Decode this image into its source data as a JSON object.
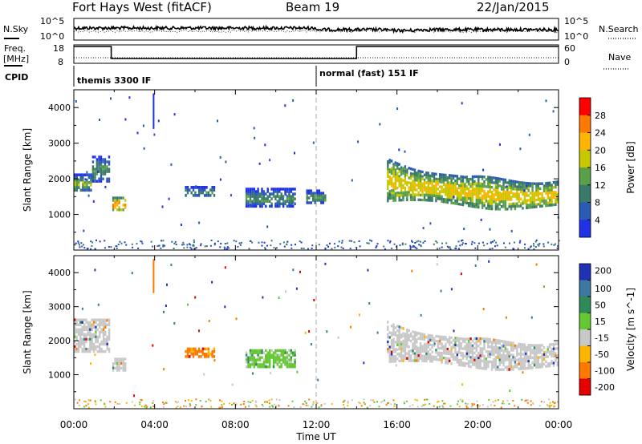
{
  "header": {
    "title": "Fort Hays West (fitACF)",
    "beam": "Beam 19",
    "date": "22/Jan/2015"
  },
  "noise_panel": {
    "left_label": "N.Sky",
    "left_ticks": [
      "10^5",
      "10^0"
    ],
    "right_label": "N.Search",
    "right_ticks": [
      "10^5",
      "10^0"
    ]
  },
  "freq_panel": {
    "left_label_line1": "Freq.",
    "left_label_line2": "[MHz]",
    "left_ticks": [
      "18",
      "8"
    ],
    "right_label": "Nave",
    "right_ticks": [
      "60",
      "0"
    ]
  },
  "cpid": {
    "label": "CPID",
    "modes": [
      {
        "text": "themis 3300 IF",
        "start_hour": 0
      },
      {
        "text": "normal (fast) 151 IF",
        "start_hour": 12
      }
    ]
  },
  "x_axis": {
    "label": "Time UT",
    "tick_labels": [
      "00:00",
      "04:00",
      "08:00",
      "12:00",
      "16:00",
      "20:00",
      "00:00"
    ]
  },
  "chart_data": [
    {
      "type": "heatmap",
      "name_label": "Power",
      "ylabel": "Slant Range [km]",
      "xlim": [
        0,
        24
      ],
      "ylim": [
        0,
        4500
      ],
      "yticks": [
        1000,
        2000,
        3000,
        4000
      ],
      "colorbar": {
        "label": "Power [dB]",
        "range": [
          0,
          32
        ],
        "tick_values": [
          4,
          8,
          12,
          16,
          20,
          24,
          28
        ],
        "tick_labels": [
          "4",
          "8",
          "12",
          "16",
          "20",
          "24",
          "28"
        ],
        "colors": [
          "#1f32e6",
          "#2a5ab4",
          "#3a7a6a",
          "#5aa04a",
          "#c8c800",
          "#ffb400",
          "#ff7800",
          "#ff0000"
        ]
      },
      "regions": [
        {
          "hours": [
            0.0,
            0.9
          ],
          "range_km": [
            1650,
            2150
          ],
          "power_db": 9
        },
        {
          "hours": [
            0.9,
            1.8
          ],
          "range_km": [
            1900,
            2650
          ],
          "power_db": 5
        },
        {
          "hours": [
            1.9,
            2.6
          ],
          "range_km": [
            1100,
            1500
          ],
          "power_db": 16
        },
        {
          "hours": [
            5.5,
            7.0
          ],
          "range_km": [
            1500,
            1800
          ],
          "power_db": 5
        },
        {
          "hours": [
            8.5,
            11.0
          ],
          "range_km": [
            1200,
            1750
          ],
          "power_db": 5
        },
        {
          "hours": [
            11.5,
            12.5
          ],
          "range_km": [
            1300,
            1700
          ],
          "power_db": 4
        },
        {
          "hours": [
            15.5,
            24.0
          ],
          "range_km": [
            1200,
            2600
          ],
          "power_db": 14
        }
      ]
    },
    {
      "type": "heatmap",
      "name_label": "Velocity",
      "ylabel": "Slant Range [km]",
      "xlim": [
        0,
        24
      ],
      "ylim": [
        0,
        4500
      ],
      "yticks": [
        1000,
        2000,
        3000,
        4000
      ],
      "colorbar": {
        "label": "Velocity [m s^-1]",
        "tick_labels": [
          "200",
          "100",
          "50",
          "15",
          "-15",
          "-50",
          "-100",
          "-200"
        ],
        "colors": [
          "#1f32b4",
          "#3c78a0",
          "#2e8b57",
          "#64c832",
          "#c8c8c8",
          "#ffb400",
          "#ff7800",
          "#e60000"
        ]
      },
      "regions": [
        {
          "hours": [
            0.0,
            1.8
          ],
          "range_km": [
            1650,
            2650
          ],
          "velocity": "ground"
        },
        {
          "hours": [
            1.9,
            2.6
          ],
          "range_km": [
            1100,
            1500
          ],
          "velocity": "ground"
        },
        {
          "hours": [
            5.5,
            7.0
          ],
          "range_km": [
            1500,
            1800
          ],
          "velocity": -60
        },
        {
          "hours": [
            8.5,
            11.0
          ],
          "range_km": [
            1200,
            1750
          ],
          "velocity": 30
        },
        {
          "hours": [
            15.5,
            24.0
          ],
          "range_km": [
            1200,
            2600
          ],
          "velocity": "ground"
        }
      ]
    }
  ]
}
